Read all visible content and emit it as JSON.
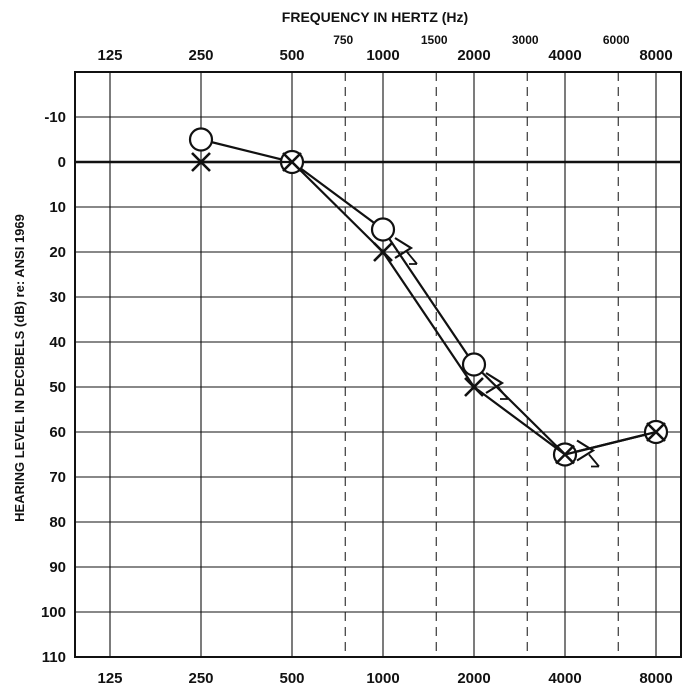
{
  "chart_data": {
    "type": "line",
    "title": "FREQUENCY IN HERTZ (Hz)",
    "xlabel": "FREQUENCY IN HERTZ (Hz)",
    "ylabel": "HEARING LEVEL IN DECIBELS (dB) re: ANSI 1969",
    "x_scale": "log2",
    "y_inverted": true,
    "ylim": [
      -20,
      110
    ],
    "grid": true,
    "octave_frequencies": [
      "125",
      "250",
      "500",
      "1000",
      "2000",
      "4000",
      "8000"
    ],
    "interoctave_frequencies": [
      "750",
      "1500",
      "3000",
      "6000"
    ],
    "y_ticks": [
      "-10",
      "0",
      "10",
      "20",
      "30",
      "40",
      "50",
      "60",
      "70",
      "80",
      "90",
      "100",
      "110"
    ],
    "series": [
      {
        "marker": "O",
        "x": [
          250,
          500,
          1000,
          2000,
          4000,
          8000
        ],
        "y": [
          -5,
          0,
          15,
          45,
          65,
          60
        ]
      },
      {
        "marker": "X",
        "x": [
          250,
          500,
          1000,
          2000,
          4000,
          8000
        ],
        "y": [
          0,
          0,
          20,
          50,
          65,
          60
        ]
      },
      {
        "marker": ">",
        "x": [
          1000,
          2000,
          4000
        ],
        "y": [
          20,
          50,
          65
        ]
      }
    ]
  }
}
